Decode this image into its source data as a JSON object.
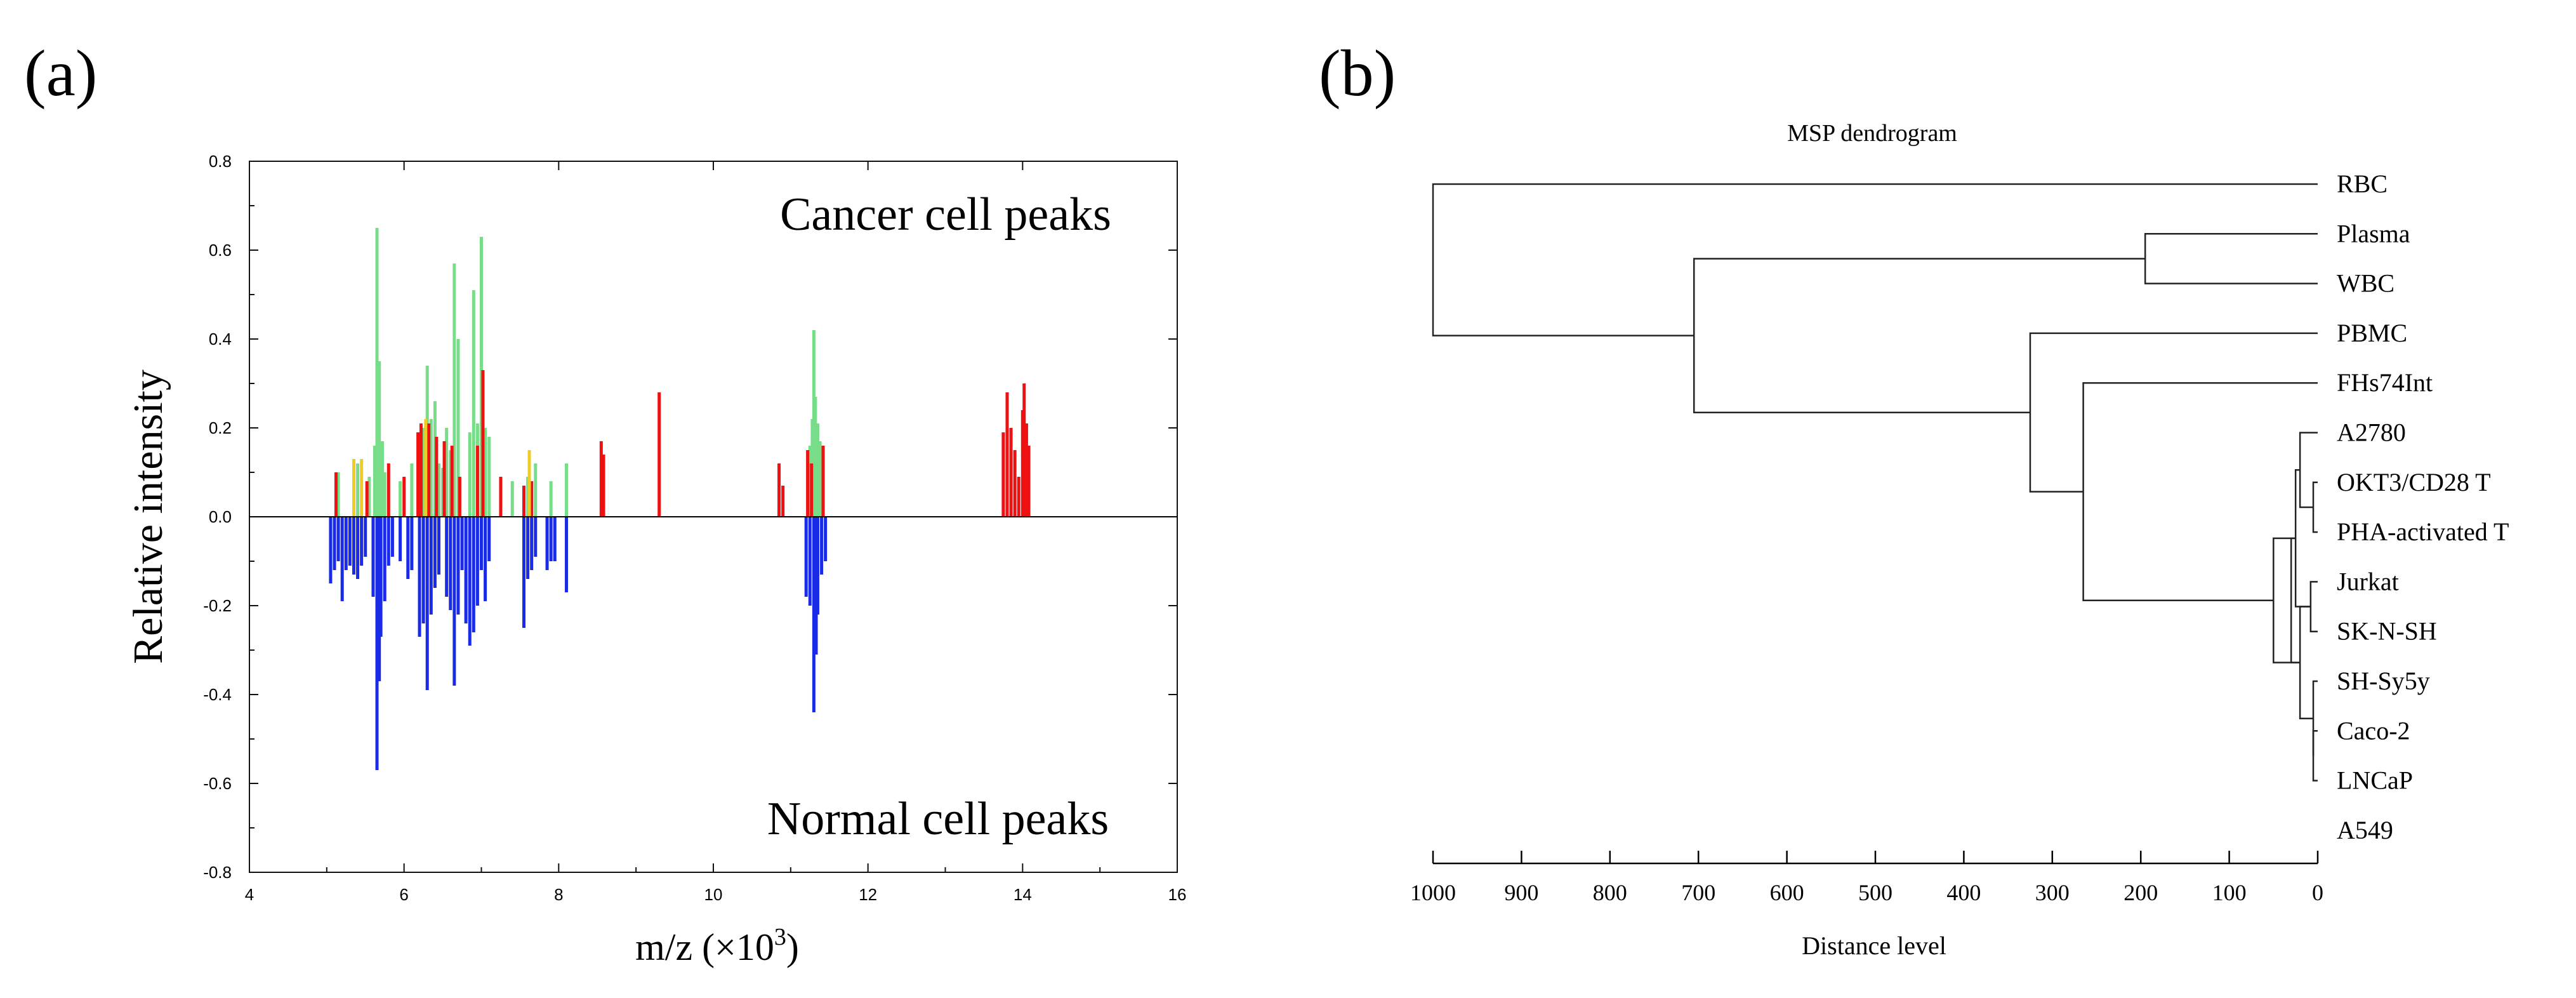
{
  "chart_data": [
    {
      "panel": "(a)",
      "type": "bar",
      "subtype": "mirrored spectrum (peaks)",
      "xlabel_prefix": "m/z (×10",
      "xlabel_sup": "3",
      "xlabel_suffix": ")",
      "ylabel": "Relative intensity",
      "xlim": [
        4,
        16
      ],
      "ylim": [
        -0.8,
        0.8
      ],
      "xticks": [
        4,
        6,
        8,
        10,
        12,
        14,
        16
      ],
      "yticks": [
        -0.8,
        -0.6,
        -0.4,
        -0.2,
        0.0,
        0.2,
        0.4,
        0.6,
        0.8
      ],
      "xtick_labels": [
        "4",
        "6",
        "8",
        "10",
        "12",
        "14",
        "16"
      ],
      "ytick_labels": [
        "-0.8",
        "-0.6",
        "-0.4",
        "-0.2",
        "0.0",
        "0.2",
        "0.4",
        "0.6",
        "0.8"
      ],
      "annotations": {
        "top": "Cancer cell peaks",
        "bottom": "Normal cell peaks"
      },
      "colors": {
        "green": "#77dd88",
        "red": "#ee1111",
        "yellow": "#eecc22",
        "blue": "#1a2be8"
      },
      "series": [
        {
          "name": "Cancer cell peaks (green)",
          "color": "green",
          "x": [
            5.15,
            5.4,
            5.55,
            5.62,
            5.65,
            5.68,
            5.72,
            5.75,
            5.95,
            6.1,
            6.2,
            6.25,
            6.3,
            6.35,
            6.4,
            6.45,
            6.5,
            6.55,
            6.6,
            6.65,
            6.7,
            6.85,
            6.9,
            6.95,
            7.0,
            7.05,
            7.1,
            7.4,
            7.6,
            7.7,
            7.9,
            8.1,
            11.25,
            11.28,
            11.3,
            11.32,
            11.35,
            11.38
          ],
          "values": [
            0.1,
            0.12,
            0.09,
            0.16,
            0.65,
            0.35,
            0.17,
            0.1,
            0.08,
            0.12,
            0.15,
            0.2,
            0.34,
            0.22,
            0.26,
            0.12,
            0.11,
            0.2,
            0.15,
            0.57,
            0.4,
            0.19,
            0.51,
            0.21,
            0.63,
            0.2,
            0.18,
            0.08,
            0.09,
            0.12,
            0.08,
            0.12,
            0.16,
            0.22,
            0.42,
            0.27,
            0.21,
            0.17
          ]
        },
        {
          "name": "Cancer cell peaks (red)",
          "color": "red",
          "x": [
            5.12,
            5.52,
            5.8,
            6.0,
            6.18,
            6.22,
            6.32,
            6.42,
            6.52,
            6.62,
            6.72,
            6.95,
            7.02,
            7.25,
            7.55,
            7.65,
            8.55,
            8.58,
            9.3,
            10.85,
            10.9,
            11.22,
            11.27,
            11.42,
            13.75,
            13.8,
            13.85,
            13.9,
            13.95,
            14.0,
            14.02,
            14.05,
            14.08
          ],
          "values": [
            0.1,
            0.08,
            0.12,
            0.09,
            0.19,
            0.21,
            0.21,
            0.18,
            0.17,
            0.16,
            0.09,
            0.16,
            0.33,
            0.09,
            0.07,
            0.08,
            0.17,
            0.14,
            0.28,
            0.12,
            0.07,
            0.15,
            0.12,
            0.16,
            0.19,
            0.28,
            0.2,
            0.15,
            0.09,
            0.24,
            0.3,
            0.21,
            0.16
          ]
        },
        {
          "name": "Cancer cell peaks (yellow)",
          "color": "yellow",
          "x": [
            5.35,
            5.45,
            6.28,
            7.62
          ],
          "values": [
            0.13,
            0.13,
            0.22,
            0.15
          ]
        },
        {
          "name": "Normal cell peaks (blue)",
          "color": "blue",
          "x": [
            5.05,
            5.1,
            5.15,
            5.2,
            5.25,
            5.3,
            5.35,
            5.4,
            5.45,
            5.5,
            5.6,
            5.65,
            5.68,
            5.7,
            5.75,
            5.8,
            5.85,
            5.95,
            6.05,
            6.1,
            6.2,
            6.25,
            6.3,
            6.35,
            6.4,
            6.45,
            6.55,
            6.6,
            6.65,
            6.7,
            6.75,
            6.8,
            6.85,
            6.9,
            6.95,
            7.0,
            7.05,
            7.1,
            7.55,
            7.6,
            7.65,
            7.7,
            7.85,
            7.9,
            7.95,
            8.1,
            11.2,
            11.25,
            11.3,
            11.33,
            11.35,
            11.4,
            11.45
          ],
          "values": [
            -0.15,
            -0.12,
            -0.1,
            -0.19,
            -0.12,
            -0.11,
            -0.13,
            -0.14,
            -0.11,
            -0.09,
            -0.18,
            -0.57,
            -0.37,
            -0.27,
            -0.19,
            -0.11,
            -0.09,
            -0.1,
            -0.14,
            -0.12,
            -0.27,
            -0.24,
            -0.39,
            -0.22,
            -0.16,
            -0.13,
            -0.18,
            -0.21,
            -0.38,
            -0.22,
            -0.12,
            -0.24,
            -0.29,
            -0.26,
            -0.2,
            -0.12,
            -0.19,
            -0.1,
            -0.25,
            -0.14,
            -0.12,
            -0.09,
            -0.12,
            -0.1,
            -0.1,
            -0.17,
            -0.18,
            -0.2,
            -0.44,
            -0.31,
            -0.22,
            -0.13,
            -0.1
          ]
        }
      ]
    },
    {
      "panel": "(b)",
      "type": "dendrogram",
      "title": "MSP dendrogram",
      "xlabel": "Distance level",
      "xlim": [
        1000,
        0
      ],
      "xticks": [
        1000,
        900,
        800,
        700,
        600,
        500,
        400,
        300,
        200,
        100,
        0
      ],
      "xtick_labels": [
        "1000",
        "900",
        "800",
        "700",
        "600",
        "500",
        "400",
        "300",
        "200",
        "100",
        "0"
      ],
      "leaves": [
        "RBC",
        "Plasma",
        "WBC",
        "PBMC",
        "FHs74Int",
        "A2780",
        "OKT3/CD28 T",
        "PHA-activated T",
        "Jurkat",
        "SK-N-SH",
        "SH-Sy5y",
        "Caco-2",
        "LNCaP",
        "A549"
      ],
      "merges": [
        {
          "a": "L6",
          "b": "L7",
          "dist": 5
        },
        {
          "a": "L11",
          "b": "L12",
          "dist": 5
        },
        {
          "a": "L10",
          "b": "L11",
          "dist": 5
        },
        {
          "a": "L8",
          "b": "L9",
          "dist": 8
        },
        {
          "a": "L5",
          "b": "L6",
          "dist": 20
        },
        {
          "a": "L9",
          "b": "L10",
          "dist": 20
        },
        {
          "a": "L5",
          "b": "L8",
          "dist": 25
        },
        {
          "a": "L8",
          "b": "L10",
          "dist": 30
        },
        {
          "a": "L5",
          "b": "L9",
          "dist": 50
        },
        {
          "a": "L4",
          "b": "L5",
          "dist": 265
        },
        {
          "a": "L3",
          "b": "L4",
          "dist": 325
        },
        {
          "a": "L1",
          "b": "L2",
          "dist": 195
        },
        {
          "a": "L1",
          "b": "L3",
          "dist": 705
        },
        {
          "a": "L0",
          "b": "L1",
          "dist": 1000
        }
      ]
    }
  ],
  "panel_labels": {
    "a": "(a)",
    "b": "(b)"
  }
}
